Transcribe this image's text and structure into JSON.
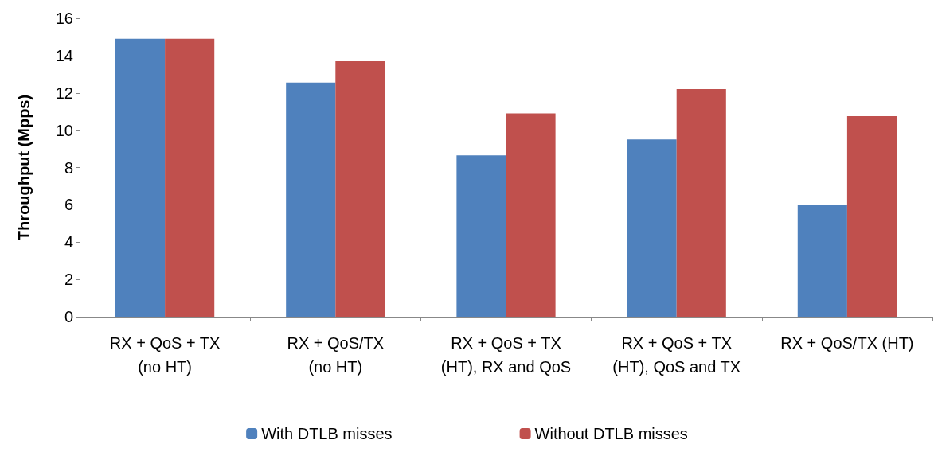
{
  "chart_data": {
    "type": "bar",
    "ylabel": "Throughput (Mpps)",
    "categories": [
      "RX + QoS + TX\n(no HT)",
      "RX + QoS/TX\n(no HT)",
      "RX + QoS + TX\n(HT), RX and QoS",
      "RX + QoS + TX\n(HT), QoS and TX",
      "RX + QoS/TX (HT)"
    ],
    "series": [
      {
        "name": "With DTLB misses",
        "color": "#4f81bd",
        "values": [
          14.9,
          12.55,
          8.65,
          9.5,
          6.0
        ]
      },
      {
        "name": "Without DTLB misses",
        "color": "#c0504d",
        "values": [
          14.9,
          13.7,
          10.9,
          12.2,
          10.75
        ]
      }
    ],
    "ylim": [
      0,
      16
    ],
    "yticks": [
      0,
      2,
      4,
      6,
      8,
      10,
      12,
      14,
      16
    ],
    "grid": false,
    "legend": "bottom"
  }
}
